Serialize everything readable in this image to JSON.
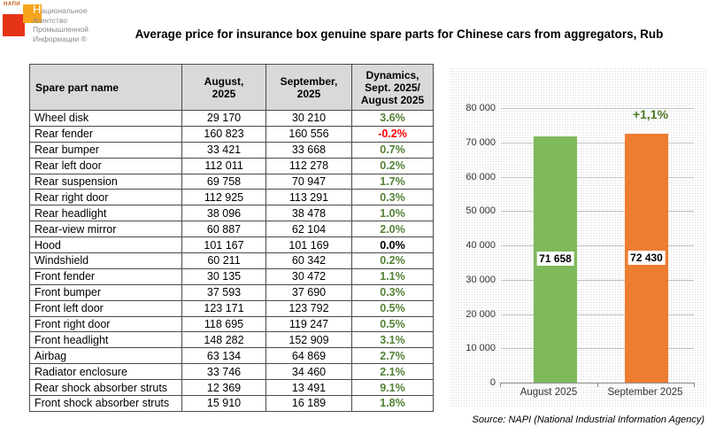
{
  "logo": {
    "acronym": "НАПИ",
    "lines": [
      "Национальное",
      "Агентство",
      "Промышленной",
      "Информации ®"
    ]
  },
  "title": "Average price for insurance box genuine spare parts for Chinese cars from aggregators, Rub",
  "table": {
    "headers": [
      "Spare part name",
      "August,\n2025",
      "September,\n2025",
      "Dynamics,\nSept. 2025/\nAugust 2025"
    ],
    "rows": [
      {
        "name": "Wheel disk",
        "aug": "29 170",
        "sep": "30 210",
        "dyn": "3.6%",
        "trend": "up"
      },
      {
        "name": "Rear fender",
        "aug": "160 823",
        "sep": "160 556",
        "dyn": "-0.2%",
        "trend": "down"
      },
      {
        "name": "Rear bumper",
        "aug": "33 421",
        "sep": "33 668",
        "dyn": "0.7%",
        "trend": "up"
      },
      {
        "name": "Rear left door",
        "aug": "112 011",
        "sep": "112 278",
        "dyn": "0.2%",
        "trend": "up"
      },
      {
        "name": "Rear suspension",
        "aug": "69 758",
        "sep": "70 947",
        "dyn": "1.7%",
        "trend": "up"
      },
      {
        "name": "Rear right door",
        "aug": "112 925",
        "sep": "113 291",
        "dyn": "0.3%",
        "trend": "up"
      },
      {
        "name": "Rear headlight",
        "aug": "38 096",
        "sep": "38 478",
        "dyn": "1.0%",
        "trend": "up"
      },
      {
        "name": "Rear-view mirror",
        "aug": "60 887",
        "sep": "62 104",
        "dyn": "2.0%",
        "trend": "up"
      },
      {
        "name": "Hood",
        "aug": "101 167",
        "sep": "101 169",
        "dyn": "0.0%",
        "trend": "flat"
      },
      {
        "name": "Windshield",
        "aug": "60 211",
        "sep": "60 342",
        "dyn": "0.2%",
        "trend": "up"
      },
      {
        "name": "Front fender",
        "aug": "30 135",
        "sep": "30 472",
        "dyn": "1.1%",
        "trend": "up"
      },
      {
        "name": "Front bumper",
        "aug": "37 593",
        "sep": "37 690",
        "dyn": "0.3%",
        "trend": "up"
      },
      {
        "name": "Front left door",
        "aug": "123 171",
        "sep": "123 792",
        "dyn": "0.5%",
        "trend": "up"
      },
      {
        "name": "Front right door",
        "aug": "118 695",
        "sep": "119 247",
        "dyn": "0.5%",
        "trend": "up"
      },
      {
        "name": "Front headlight",
        "aug": "148 282",
        "sep": "152 909",
        "dyn": "3.1%",
        "trend": "up"
      },
      {
        "name": "Airbag",
        "aug": "63 134",
        "sep": "64 869",
        "dyn": "2.7%",
        "trend": "up"
      },
      {
        "name": "Radiator enclosure",
        "aug": "33 746",
        "sep": "34 460",
        "dyn": "2.1%",
        "trend": "up"
      },
      {
        "name": "Rear shock absorber struts",
        "aug": "12 369",
        "sep": "13 491",
        "dyn": "9.1%",
        "trend": "up"
      },
      {
        "name": "Front shock absorber struts",
        "aug": "15 910",
        "sep": "16 189",
        "dyn": "1.8%",
        "trend": "up"
      }
    ]
  },
  "chart_data": {
    "type": "bar",
    "categories": [
      "August 2025",
      "September 2025"
    ],
    "values": [
      71658,
      72430
    ],
    "value_labels": [
      "71 658",
      "72 430"
    ],
    "annotation": "+1,1%",
    "ylim": [
      0,
      80000
    ],
    "ytick_step": 10000,
    "yticks": [
      "0",
      "10 000",
      "20 000",
      "30 000",
      "40 000",
      "50 000",
      "60 000",
      "70 000",
      "80 000"
    ],
    "bar_colors": [
      "#7EB95A",
      "#ED7D31"
    ],
    "grid": true,
    "legend": "none"
  },
  "source": "Source: NAPI (National Industrial Information Agency)",
  "colors": {
    "trend_up": "#538135",
    "trend_down": "#FF0000",
    "trend_flat": "#000000",
    "bar_august": "#7EB95A",
    "bar_september": "#ED7D31",
    "annotation_green": "#4E7A28",
    "header_bg": "#D9D9D9",
    "logo_red": "#E63418",
    "logo_orange": "#F6A41C"
  }
}
